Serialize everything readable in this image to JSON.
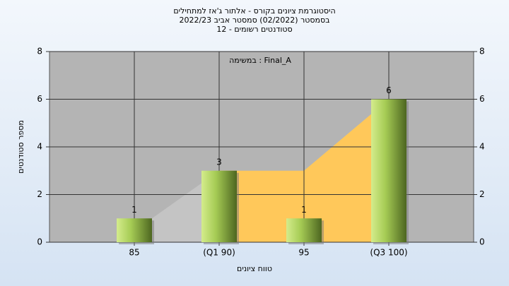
{
  "chart_data": {
    "type": "bar",
    "title": [
      "היסטוגרמת ציונים בקורס - אלתור ג'אז למתחילים",
      "בסמסטר  (02/2022)  סמסטר אביב 2022/23",
      "סטודנטים רשומים - 12"
    ],
    "annotation": "במשימה : Final_A",
    "y_label": "מספר סטודנטים",
    "x_label": "טווח ציונים",
    "categories": [
      "85",
      "(Q1 90)",
      "95",
      "(Q3 100)"
    ],
    "values": [
      1,
      3,
      1,
      6
    ],
    "color": "#8db33a",
    "area": {
      "values": [
        1,
        3,
        3,
        6
      ],
      "segment_colors": [
        "#c4c4c4",
        "#ffc85a",
        "#ffc85a"
      ]
    },
    "ylim": [
      0,
      8
    ],
    "yticks": [
      0,
      2,
      4,
      6,
      8
    ],
    "y2lim": [
      0,
      8
    ],
    "y2ticks": [
      0,
      2,
      4,
      6,
      8
    ],
    "grid": true
  }
}
